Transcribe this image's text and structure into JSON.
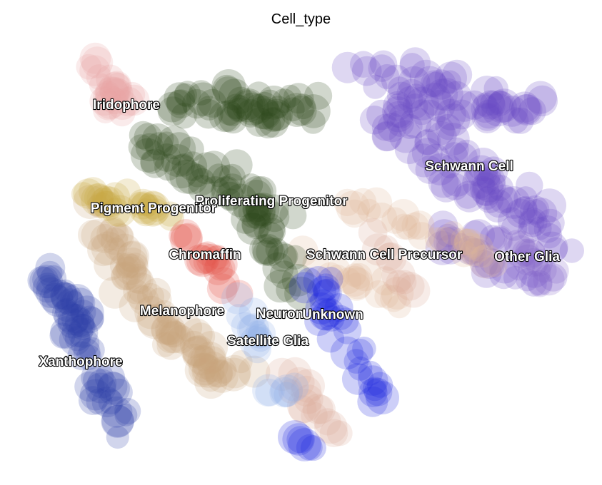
{
  "chart_data": {
    "type": "scatter",
    "title": "Cell_type",
    "xlabel": "",
    "ylabel": "",
    "grid": false,
    "legend": "on data",
    "clusters": [
      {
        "name": "Iridophore",
        "color": "#e8a3a3"
      },
      {
        "name": "Proliferating Progenitor",
        "color": "#2f4a1c"
      },
      {
        "name": "Pigment Progenitor",
        "color": "#c9aa3e"
      },
      {
        "name": "Chromaffin",
        "color": "#e5544b"
      },
      {
        "name": "Melanophore",
        "color": "#c9a37a"
      },
      {
        "name": "Xanthophore",
        "color": "#2d3fa8"
      },
      {
        "name": "Schwann Cell",
        "color": "#6b4bc2"
      },
      {
        "name": "Other Glia",
        "color": "#8462c9"
      },
      {
        "name": "Schwann Cell Precursor",
        "color": "#e0b898"
      },
      {
        "name": "Neuron",
        "color": "#1a26e0"
      },
      {
        "name": "Unknown",
        "color": "#d9a898"
      },
      {
        "name": "Satellite Glia",
        "color": "#8faee8"
      }
    ]
  }
}
